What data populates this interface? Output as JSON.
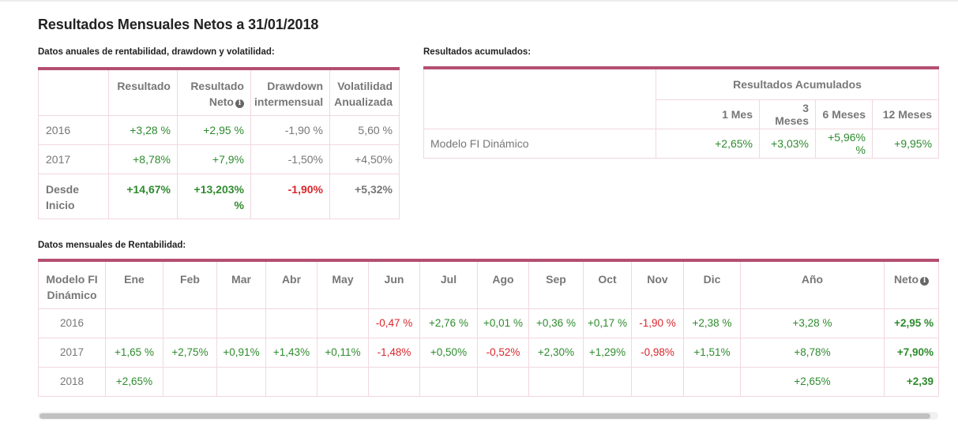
{
  "title": "Resultados Mensuales Netos a 31/01/2018",
  "annual": {
    "subtitle": "Datos anuales de rentabilidad, drawdown y volatilidad:",
    "headers": [
      "Resultado",
      "Resultado Neto",
      "Drawdown intermensual",
      "Volatilidad Anualizada"
    ],
    "rows": [
      {
        "label": "2016",
        "values": [
          "+3,28 %",
          "+2,95 %",
          "-1,90 %",
          "5,60 %"
        ]
      },
      {
        "label": "2017",
        "values": [
          "+8,78%",
          "+7,9%",
          "-1,50%",
          "+4,50%"
        ]
      },
      {
        "label": "Desde Inicio",
        "values": [
          "+14,67%",
          "+13,203% %",
          "-1,90%",
          "+5,32%"
        ]
      }
    ]
  },
  "cumulative": {
    "subtitle": "Resultados acumulados:",
    "group_header": "Resultados Acumulados",
    "headers": [
      "1 Mes",
      "3 Meses",
      "6 Meses",
      "12 Meses"
    ],
    "row": {
      "label": "Modelo FI Dinámico",
      "values": [
        "+2,65%",
        "+3,03%",
        "+5,96% %",
        "+9,95%"
      ]
    }
  },
  "monthly": {
    "subtitle": "Datos mensuales de Rentabilidad:",
    "model_header": "Modelo FI Dinámico",
    "months": [
      "Ene",
      "Feb",
      "Mar",
      "Abr",
      "May",
      "Jun",
      "Jul",
      "Ago",
      "Sep",
      "Oct",
      "Nov",
      "Dic"
    ],
    "year_header": "Año",
    "net_header": "Neto",
    "rows": [
      {
        "year": "2016",
        "months": [
          "",
          "",
          "",
          "",
          "",
          "-0,47 %",
          "+2,76 %",
          "+0,01 %",
          "+0,36 %",
          "+0,17 %",
          "-1,90 %",
          "+2,38 %"
        ],
        "anio": "+3,28 %",
        "neto": "+2,95 %"
      },
      {
        "year": "2017",
        "months": [
          "+1,65 %",
          "+2,75%",
          "+0,91%",
          "+1,43%",
          "+0,11%",
          "-1,48%",
          "+0,50%",
          "-0,52%",
          "+2,30%",
          "+1,29%",
          "-0,98%",
          "+1,51%"
        ],
        "anio": "+8,78%",
        "neto": "+7,90%"
      },
      {
        "year": "2018",
        "months": [
          "+2,65%",
          "",
          "",
          "",
          "",
          "",
          "",
          "",
          "",
          "",
          "",
          ""
        ],
        "anio": "+2,65%",
        "neto": "+2,39"
      }
    ]
  },
  "colors": {
    "accent": "#b54f72",
    "positive": "#2e8b2e",
    "negative": "#d9262b",
    "muted": "#777777"
  },
  "icons": {
    "info": "info-circle-icon"
  }
}
